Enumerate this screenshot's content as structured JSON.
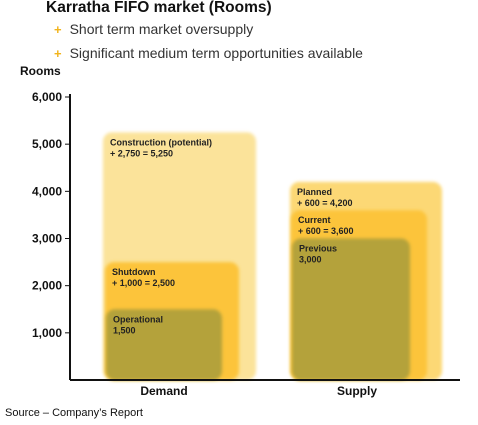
{
  "title": "Karratha FIFO market (Rooms)",
  "bullets": [
    "Short term market oversupply",
    "Significant medium term opportunities available"
  ],
  "source": "Source – Company’s Report",
  "colors": {
    "construction": "#fbe39a",
    "shutdown": "#fcc43a",
    "operational": "#b4a23a",
    "planned": "#fcd875",
    "current": "#fcc43a",
    "previous": "#b4a23a",
    "bullet": "#f2b41c"
  },
  "chart_data": {
    "type": "bar",
    "ylabel": "Rooms",
    "ylim": [
      0,
      6000
    ],
    "yticks": [
      1000,
      2000,
      3000,
      4000,
      5000,
      6000
    ],
    "ytick_labels": [
      "1,000",
      "2,000",
      "3,000",
      "4,000",
      "5,000",
      "6,000"
    ],
    "categories": [
      "Demand",
      "Supply"
    ],
    "stacks": [
      {
        "category": "Demand",
        "layers": [
          {
            "value": 5250,
            "label1": "Construction (potential)",
            "label2": "+ 2,750 = 5,250",
            "color_key": "construction"
          },
          {
            "value": 2500,
            "label1": "Shutdown",
            "label2": "+ 1,000 = 2,500",
            "color_key": "shutdown"
          },
          {
            "value": 1500,
            "label1": "Operational",
            "label2": "1,500",
            "color_key": "operational"
          }
        ]
      },
      {
        "category": "Supply",
        "layers": [
          {
            "value": 4200,
            "label1": "Planned",
            "label2": "+ 600 = 4,200",
            "color_key": "planned"
          },
          {
            "value": 3600,
            "label1": "Current",
            "label2": "+ 600 = 3,600",
            "color_key": "current"
          },
          {
            "value": 3000,
            "label1": "Previous",
            "label2": "3,000",
            "color_key": "previous"
          }
        ]
      }
    ]
  }
}
